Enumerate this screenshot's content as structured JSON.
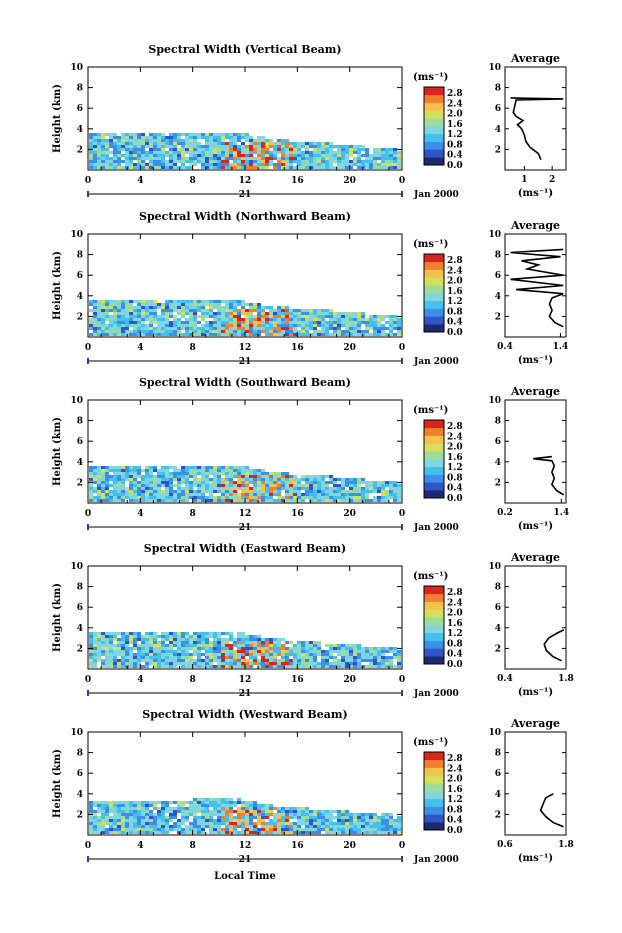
{
  "common": {
    "ylabel": "Height (km)",
    "x_ticks": [
      "0",
      "4",
      "8",
      "12",
      "16",
      "20",
      "0"
    ],
    "day_label": "21",
    "date_label": "Jan 2000",
    "xlabel": "Local Time",
    "units_label": "(ms⁻¹)",
    "avg_title": "Average",
    "avg_xlabel": "(ms⁻¹)",
    "y_ticks": [
      "10",
      "8",
      "6",
      "4",
      "2"
    ],
    "colorbar_ticks": [
      "2.8",
      "2.4",
      "2.0",
      "1.6",
      "1.2",
      "0.8",
      "0.4",
      "0.0"
    ]
  },
  "colors": {
    "scale": [
      "#1d2a6e",
      "#2f55c8",
      "#3b8fe6",
      "#44c0ee",
      "#7fd6df",
      "#9edc9a",
      "#d4e05a",
      "#f4c24a",
      "#f47e30",
      "#d8261e"
    ]
  },
  "chart_data": [
    {
      "type": "heatmap",
      "title": "Spectral Width (Vertical Beam)",
      "xlim": [
        0,
        24
      ],
      "ylim": [
        0,
        10
      ],
      "zlim": [
        0,
        2.8
      ],
      "echo_top_km": [
        [
          0,
          3.7
        ],
        [
          4,
          3.6
        ],
        [
          8,
          3.6
        ],
        [
          11,
          3.8
        ],
        [
          14,
          3.0
        ],
        [
          18,
          2.7
        ],
        [
          22,
          2.2
        ],
        [
          24,
          2.0
        ]
      ],
      "average_profile": {
        "xlim": [
          0.3,
          2.5
        ],
        "x_ticks": [
          "1",
          "2"
        ],
        "points": [
          [
            1.6,
            1.0
          ],
          [
            1.5,
            1.6
          ],
          [
            1.2,
            2.2
          ],
          [
            1.05,
            2.8
          ],
          [
            1.0,
            3.4
          ],
          [
            0.9,
            4.0
          ],
          [
            0.75,
            4.4
          ],
          [
            0.95,
            4.8
          ],
          [
            0.7,
            5.2
          ],
          [
            0.6,
            5.6
          ],
          [
            0.7,
            6.8
          ],
          [
            2.4,
            6.9
          ],
          [
            0.5,
            7.0
          ]
        ]
      }
    },
    {
      "type": "heatmap",
      "title": "Spectral Width (Northward Beam)",
      "xlim": [
        0,
        24
      ],
      "ylim": [
        0,
        10
      ],
      "zlim": [
        0,
        2.8
      ],
      "echo_top_km": [
        [
          0,
          3.7
        ],
        [
          4,
          3.6
        ],
        [
          8,
          3.6
        ],
        [
          11,
          3.7
        ],
        [
          14,
          3.0
        ],
        [
          18,
          2.7
        ],
        [
          22,
          2.2
        ],
        [
          24,
          2.0
        ]
      ],
      "average_profile": {
        "xlim": [
          0.4,
          1.5
        ],
        "x_ticks": [
          "0.4",
          "1.4"
        ],
        "points": [
          [
            1.45,
            1.0
          ],
          [
            1.3,
            1.4
          ],
          [
            1.2,
            2.0
          ],
          [
            1.25,
            2.6
          ],
          [
            1.2,
            3.2
          ],
          [
            1.25,
            3.8
          ],
          [
            1.45,
            4.2
          ],
          [
            0.6,
            4.6
          ],
          [
            1.45,
            5.0
          ],
          [
            0.5,
            5.6
          ],
          [
            1.45,
            6.0
          ],
          [
            0.8,
            6.6
          ],
          [
            1.0,
            7.0
          ],
          [
            0.7,
            7.4
          ],
          [
            1.4,
            7.8
          ],
          [
            0.5,
            8.2
          ],
          [
            1.45,
            8.5
          ]
        ]
      }
    },
    {
      "type": "heatmap",
      "title": "Spectral Width (Southward Beam)",
      "xlim": [
        0,
        24
      ],
      "ylim": [
        0,
        10
      ],
      "zlim": [
        0,
        2.8
      ],
      "echo_top_km": [
        [
          0,
          3.7
        ],
        [
          4,
          3.6
        ],
        [
          8,
          3.6
        ],
        [
          11,
          3.8
        ],
        [
          14,
          3.0
        ],
        [
          18,
          2.7
        ],
        [
          22,
          2.2
        ],
        [
          24,
          2.0
        ]
      ],
      "average_profile": {
        "xlim": [
          0.2,
          1.5
        ],
        "x_ticks": [
          "0.2",
          "1.4"
        ],
        "points": [
          [
            1.45,
            0.8
          ],
          [
            1.3,
            1.2
          ],
          [
            1.2,
            1.8
          ],
          [
            1.25,
            2.4
          ],
          [
            1.2,
            3.0
          ],
          [
            1.25,
            3.6
          ],
          [
            1.2,
            4.1
          ],
          [
            0.8,
            4.3
          ],
          [
            1.2,
            4.5
          ]
        ]
      }
    },
    {
      "type": "heatmap",
      "title": "Spectral Width (Eastward Beam)",
      "xlim": [
        0,
        24
      ],
      "ylim": [
        0,
        10
      ],
      "zlim": [
        0,
        2.8
      ],
      "echo_top_km": [
        [
          0,
          3.5
        ],
        [
          4,
          3.5
        ],
        [
          8,
          3.6
        ],
        [
          11,
          3.7
        ],
        [
          14,
          3.0
        ],
        [
          18,
          2.6
        ],
        [
          22,
          2.2
        ],
        [
          24,
          2.0
        ]
      ],
      "average_profile": {
        "xlim": [
          0.4,
          1.8
        ],
        "x_ticks": [
          "0.4",
          "1.8"
        ],
        "points": [
          [
            1.7,
            0.8
          ],
          [
            1.5,
            1.2
          ],
          [
            1.35,
            1.8
          ],
          [
            1.3,
            2.4
          ],
          [
            1.4,
            3.0
          ],
          [
            1.6,
            3.5
          ],
          [
            1.75,
            3.8
          ]
        ]
      }
    },
    {
      "type": "heatmap",
      "title": "Spectral Width (Westward Beam)",
      "xlim": [
        0,
        24
      ],
      "ylim": [
        0,
        10
      ],
      "zlim": [
        0,
        2.8
      ],
      "echo_top_km": [
        [
          0,
          3.3
        ],
        [
          4,
          3.3
        ],
        [
          8,
          3.5
        ],
        [
          11,
          3.6
        ],
        [
          14,
          2.9
        ],
        [
          18,
          2.5
        ],
        [
          22,
          2.1
        ],
        [
          24,
          2.0
        ]
      ],
      "average_profile": {
        "xlim": [
          0.6,
          1.8
        ],
        "x_ticks": [
          "0.6",
          "1.8"
        ],
        "points": [
          [
            1.75,
            0.8
          ],
          [
            1.55,
            1.2
          ],
          [
            1.4,
            1.8
          ],
          [
            1.3,
            2.4
          ],
          [
            1.35,
            3.0
          ],
          [
            1.4,
            3.6
          ],
          [
            1.55,
            4.0
          ]
        ]
      }
    }
  ]
}
